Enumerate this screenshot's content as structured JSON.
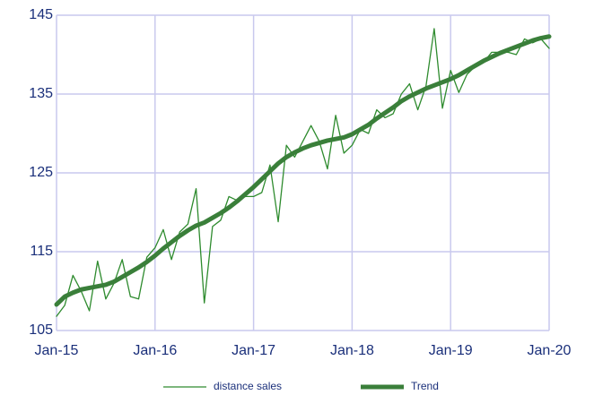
{
  "chart_data": {
    "type": "line",
    "categories": [
      "Jan-15",
      null,
      null,
      null,
      null,
      null,
      null,
      null,
      null,
      null,
      null,
      null,
      "Jan-16",
      null,
      null,
      null,
      null,
      null,
      null,
      null,
      null,
      null,
      null,
      null,
      "Jan-17",
      null,
      null,
      null,
      null,
      null,
      null,
      null,
      null,
      null,
      null,
      null,
      "Jan-18",
      null,
      null,
      null,
      null,
      null,
      null,
      null,
      null,
      null,
      null,
      null,
      "Jan-19",
      null,
      null,
      null,
      null,
      null,
      null,
      null,
      null,
      null,
      null,
      null,
      "Jan-20"
    ],
    "series": [
      {
        "name": "distance sales",
        "color": "#2e8b2e",
        "width": 1.3,
        "values": [
          106.8,
          108.2,
          112,
          110,
          107.5,
          113.8,
          109,
          111,
          114,
          109.3,
          109,
          114.3,
          115.5,
          117.8,
          114,
          117.5,
          118.5,
          123,
          108.5,
          118.2,
          119,
          122,
          121.5,
          122,
          122,
          122.5,
          126,
          118.8,
          128.5,
          127,
          129,
          131,
          129,
          125.5,
          132.3,
          127.5,
          128.5,
          130.5,
          130,
          133,
          132,
          132.5,
          135,
          136.3,
          133,
          136,
          143.3,
          133.2,
          138,
          135.2,
          137.5,
          138.5,
          139,
          140.3,
          140.3,
          140.3,
          140,
          142,
          141.5,
          142,
          140.8
        ]
      },
      {
        "name": "Trend",
        "color": "#3a7f3a",
        "width": 5,
        "values": [
          108.3,
          109.3,
          109.8,
          110.2,
          110.4,
          110.6,
          110.8,
          111.2,
          111.8,
          112.4,
          113,
          113.7,
          114.5,
          115.4,
          116.2,
          117,
          117.7,
          118.3,
          118.7,
          119.3,
          119.9,
          120.6,
          121.4,
          122.3,
          123.2,
          124.2,
          125.2,
          126.2,
          127,
          127.6,
          128.1,
          128.5,
          128.8,
          129.1,
          129.3,
          129.5,
          129.9,
          130.5,
          131.1,
          131.9,
          132.6,
          133.3,
          134.1,
          134.7,
          135.2,
          135.7,
          136.1,
          136.5,
          136.9,
          137.4,
          138,
          138.6,
          139.2,
          139.7,
          140.2,
          140.6,
          141,
          141.4,
          141.8,
          142.1,
          142.3
        ]
      }
    ],
    "ylim": [
      105,
      145
    ],
    "yticks": [
      105,
      115,
      125,
      135,
      145
    ],
    "grid": true,
    "legend": "bottom"
  }
}
